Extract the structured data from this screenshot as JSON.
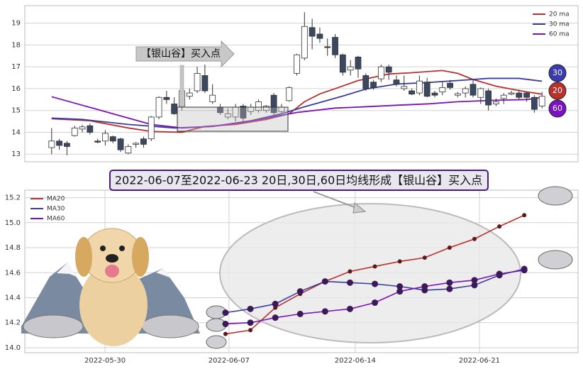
{
  "chart_data": [
    {
      "type": "candlestick",
      "open": [
        13.3,
        13.6,
        13.5,
        13.85,
        14.15,
        14.3,
        13.6,
        13.6,
        13.8,
        13.7,
        13.05,
        13.45,
        13.7,
        13.7,
        14.7,
        15.6,
        15.3,
        15.2,
        15.65,
        15.9,
        16.6,
        15.4,
        15.15,
        14.7,
        14.7,
        15.2,
        14.95,
        15.0,
        15.0,
        15.7,
        14.95,
        15.45,
        16.7,
        17.4,
        18.8,
        18.5,
        17.92,
        18.35,
        17.55,
        16.85,
        17.45,
        16.6,
        16.3,
        16.45,
        17.0,
        16.4,
        16.0,
        15.9,
        15.8,
        16.3,
        15.8,
        15.85,
        16.25,
        15.7,
        15.8,
        16.2,
        15.6,
        15.9,
        15.3,
        15.55,
        15.75,
        15.8,
        15.8,
        15.6,
        15.2
      ],
      "high": [
        14.2,
        13.7,
        13.6,
        14.3,
        14.35,
        14.4,
        13.7,
        14.1,
        13.85,
        13.75,
        13.45,
        13.55,
        13.8,
        14.75,
        15.65,
        15.9,
        15.6,
        16.5,
        16.0,
        17.0,
        17.1,
        16.2,
        15.3,
        15.1,
        15.3,
        15.3,
        15.3,
        15.5,
        15.25,
        15.8,
        15.3,
        16.1,
        17.6,
        19.5,
        19.2,
        18.8,
        18.3,
        18.5,
        17.6,
        17.3,
        17.5,
        16.7,
        16.4,
        17.1,
        17.1,
        16.6,
        16.6,
        16.0,
        16.6,
        16.5,
        15.9,
        16.3,
        16.4,
        15.85,
        16.1,
        16.4,
        16.05,
        16.0,
        15.55,
        15.8,
        15.9,
        15.95,
        15.85,
        15.7,
        15.85
      ],
      "low": [
        13.0,
        13.2,
        12.95,
        13.8,
        14.0,
        13.9,
        13.5,
        13.4,
        13.5,
        13.1,
        13.0,
        13.3,
        13.3,
        13.6,
        14.6,
        15.3,
        14.8,
        15.0,
        15.5,
        15.8,
        15.8,
        15.3,
        14.8,
        14.6,
        14.5,
        14.5,
        14.8,
        14.9,
        14.9,
        14.8,
        14.9,
        15.4,
        16.6,
        17.3,
        17.8,
        18.1,
        17.5,
        17.4,
        16.6,
        16.6,
        16.5,
        15.9,
        15.95,
        16.3,
        16.4,
        16.1,
        15.9,
        15.7,
        15.7,
        15.6,
        15.6,
        15.7,
        15.95,
        15.6,
        15.6,
        15.6,
        15.3,
        15.0,
        15.2,
        15.3,
        15.7,
        15.5,
        15.4,
        14.9,
        15.1
      ],
      "close": [
        13.6,
        13.4,
        13.35,
        14.2,
        14.25,
        14.0,
        13.55,
        13.95,
        13.6,
        13.2,
        13.35,
        13.5,
        13.45,
        14.7,
        15.6,
        15.5,
        14.85,
        15.9,
        15.8,
        16.7,
        15.9,
        15.7,
        14.9,
        14.85,
        15.15,
        14.65,
        15.15,
        15.4,
        15.2,
        14.9,
        15.15,
        16.05,
        17.55,
        18.85,
        18.4,
        18.3,
        17.88,
        17.55,
        16.75,
        17.0,
        16.9,
        16.0,
        16.05,
        17.0,
        16.75,
        16.2,
        16.1,
        15.75,
        16.35,
        15.65,
        15.7,
        16.05,
        16.05,
        15.77,
        16.0,
        15.7,
        16.0,
        15.25,
        15.4,
        15.7,
        15.8,
        15.6,
        15.6,
        15.05,
        15.65
      ],
      "up_color": "#ffffff",
      "down_color": "#3b4862",
      "lines": [
        {
          "name": "20 ma",
          "color": "#b8312f",
          "x": [
            0,
            5,
            10,
            13,
            17,
            20,
            24,
            28,
            31,
            33,
            35,
            37,
            40,
            44,
            47,
            51,
            53,
            55,
            58,
            62,
            64
          ],
          "values": [
            14.62,
            14.53,
            14.2,
            14.04,
            14.0,
            14.27,
            14.36,
            14.59,
            14.85,
            15.4,
            15.76,
            16.0,
            16.37,
            16.67,
            16.73,
            16.83,
            16.7,
            16.42,
            16.11,
            15.85,
            15.75
          ]
        },
        {
          "name": "30 ma",
          "color": "#3b3b9e",
          "x": [
            0,
            4,
            10,
            16,
            21,
            26,
            30,
            33,
            38,
            41,
            45,
            49,
            53,
            57,
            61,
            64
          ],
          "values": [
            14.65,
            14.59,
            14.36,
            14.2,
            14.27,
            14.53,
            14.85,
            15.17,
            15.66,
            15.98,
            16.21,
            16.28,
            16.37,
            16.47,
            16.47,
            16.34
          ]
        },
        {
          "name": "60 ma",
          "color": "#7a12b4",
          "x": [
            0,
            4,
            9,
            13,
            17,
            21,
            25,
            28,
            32,
            37,
            41,
            45,
            49,
            53,
            58,
            62,
            64
          ],
          "values": [
            15.63,
            15.24,
            14.75,
            14.36,
            14.2,
            14.27,
            14.46,
            14.65,
            14.91,
            15.11,
            15.17,
            15.24,
            15.3,
            15.4,
            15.47,
            15.5,
            15.6
          ]
        }
      ],
      "badges": [
        {
          "label": "30",
          "color": "#3b3bb0"
        },
        {
          "label": "20",
          "color": "#b8312f"
        },
        {
          "label": "60",
          "color": "#7a12c4"
        }
      ],
      "annotation": "【银山谷】买入点",
      "xlim": [
        -3.5,
        68.7
      ],
      "ylim": [
        12.65,
        19.8
      ],
      "yticks": [
        13,
        14,
        15,
        16,
        17,
        18,
        19
      ],
      "grid": true,
      "legend": "upper right"
    },
    {
      "type": "line",
      "title": "2022-06-07至2022-06-23 20日,30日,60日均线形成【银山谷】买入点",
      "x": [
        "2022-06-07",
        "2022-06-08",
        "2022-06-09",
        "2022-06-10",
        "2022-06-13",
        "2022-06-14",
        "2022-06-15",
        "2022-06-16",
        "2022-06-17",
        "2022-06-20",
        "2022-06-21",
        "2022-06-22",
        "2022-06-23"
      ],
      "series": [
        {
          "name": "MA20",
          "color": "#b8312f",
          "values": [
            14.11,
            14.14,
            14.32,
            14.43,
            14.53,
            14.61,
            14.65,
            14.69,
            14.72,
            14.8,
            14.87,
            14.97,
            15.06
          ]
        },
        {
          "name": "MA30",
          "color": "#3b3b9e",
          "values": [
            14.28,
            14.31,
            14.35,
            14.45,
            14.53,
            14.52,
            14.51,
            14.49,
            14.46,
            14.47,
            14.5,
            14.58,
            14.63
          ]
        },
        {
          "name": "MA60",
          "color": "#7a12b4",
          "values": [
            14.19,
            14.2,
            14.24,
            14.27,
            14.29,
            14.31,
            14.36,
            14.45,
            14.49,
            14.52,
            14.54,
            14.59,
            14.62
          ]
        }
      ],
      "xlim": [
        -8.06,
        14.16
      ],
      "xticks": [
        {
          "value": -4.84,
          "label": "2022-05-30"
        },
        {
          "value": 0.14,
          "label": "2022-06-07"
        },
        {
          "value": 5.21,
          "label": "2022-06-14"
        },
        {
          "value": 10.2,
          "label": "2022-06-21"
        }
      ],
      "ylim": [
        13.96,
        15.26
      ],
      "yticks": [
        {
          "value": 14.0,
          "label": "14.0"
        },
        14.2,
        14.4,
        14.6,
        14.8,
        {
          "value": 15.0,
          "label": "15.0"
        },
        15.2
      ],
      "grid": true,
      "legend": "upper left"
    }
  ]
}
